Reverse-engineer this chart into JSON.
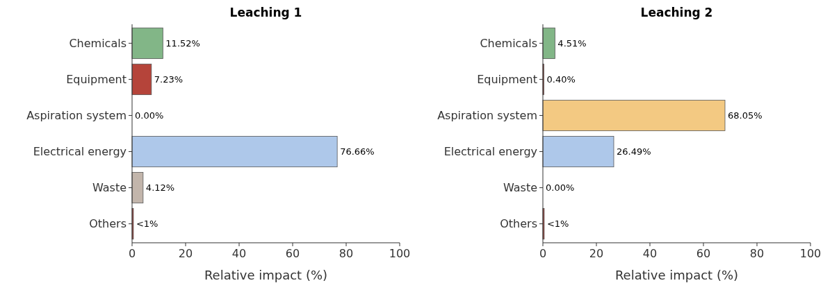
{
  "chart_data": [
    {
      "type": "bar",
      "orientation": "horizontal",
      "title": "Leaching 1",
      "xlabel": "Relative impact (%)",
      "categories": [
        "Chemicals",
        "Equipment",
        "Aspiration system",
        "Electrical energy",
        "Waste",
        "Others"
      ],
      "values": [
        11.52,
        7.23,
        0,
        76.66,
        4.12,
        0.5
      ],
      "colors": [
        "#82b687",
        "#b5443a",
        "#f3c982",
        "#aec8ea",
        "#c2b5ab",
        "#b5443a"
      ],
      "value_labels": [
        "11.52%",
        "7.23%",
        "0.00%",
        "76.66%",
        "4.12%",
        "<1%"
      ],
      "xlim": [
        0,
        100
      ],
      "xticks": [
        0,
        20,
        40,
        60,
        80,
        100
      ],
      "grid": false
    },
    {
      "type": "bar",
      "orientation": "horizontal",
      "title": "Leaching 2",
      "xlabel": "Relative impact (%)",
      "categories": [
        "Chemicals",
        "Equipment",
        "Aspiration system",
        "Electrical energy",
        "Waste",
        "Others"
      ],
      "values": [
        4.51,
        0.4,
        68.05,
        26.49,
        0,
        0.5
      ],
      "colors": [
        "#82b687",
        "#b5443a",
        "#f3c982",
        "#aec8ea",
        "#c2b5ab",
        "#b5443a"
      ],
      "value_labels": [
        "4.51%",
        "0.40%",
        "68.05%",
        "26.49%",
        "0.00%",
        "<1%"
      ],
      "xlim": [
        0,
        100
      ],
      "xticks": [
        0,
        20,
        40,
        60,
        80,
        100
      ],
      "grid": false
    }
  ]
}
